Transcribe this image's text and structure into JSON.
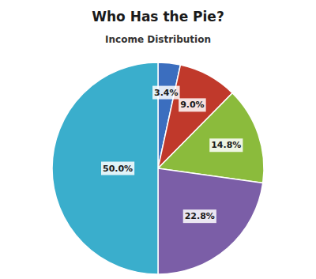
{
  "chart_data": {
    "type": "pie",
    "title": "Who Has the Pie?",
    "subtitle": "Income Distribution",
    "values": [
      3.4,
      9.0,
      14.8,
      22.8,
      50.0
    ],
    "value_labels": [
      "3.4%",
      "9.0%",
      "14.8%",
      "22.8%",
      "50.0%"
    ],
    "colors": [
      "#3B6EBF",
      "#C0392B",
      "#8BBB3C",
      "#7B5EA7",
      "#3AAECC"
    ],
    "data_labels": true
  }
}
